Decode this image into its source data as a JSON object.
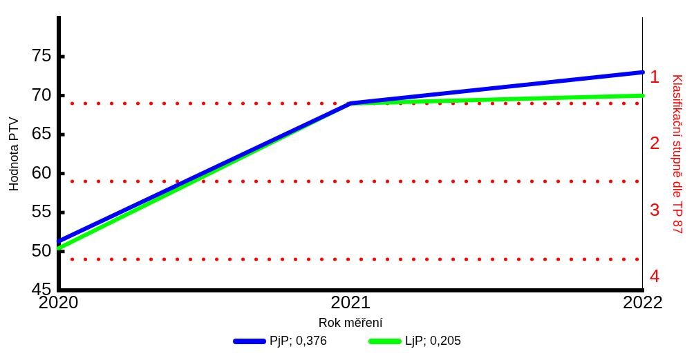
{
  "chart_data": {
    "type": "line",
    "xlabel": "Rok měření",
    "ylabel": "Hodnota PTV",
    "y2label": "Klasifikační stupně dle TP 87",
    "categories": [
      "2020",
      "2021",
      "2022"
    ],
    "series": [
      {
        "name": "PjP; 0,376",
        "color": "#0000ff",
        "values": [
          51.3,
          69,
          73
        ]
      },
      {
        "name": "LjP; 0,205",
        "color": "#00ff00",
        "values": [
          50.4,
          69,
          70
        ]
      }
    ],
    "ylim": [
      45,
      80
    ],
    "yticks": [
      45,
      50,
      55,
      60,
      65,
      70,
      75
    ],
    "y2lim": [
      4.2,
      0.1
    ],
    "y2ticks": [
      1,
      2,
      3,
      4
    ],
    "ref_lines": [
      {
        "axis": "y",
        "value": 69,
        "color": "#ff0000",
        "line_style": "dotted"
      },
      {
        "axis": "y",
        "value": 59,
        "color": "#ff0000",
        "line_style": "dotted"
      },
      {
        "axis": "y",
        "value": 49,
        "color": "#ff0000",
        "line_style": "dotted"
      }
    ],
    "grid": false,
    "legend": "bottom",
    "marker": "none",
    "line_style": "solid"
  }
}
